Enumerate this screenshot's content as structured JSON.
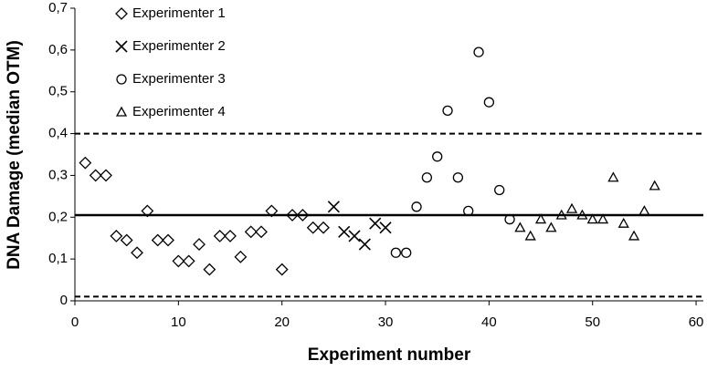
{
  "chart_data": {
    "type": "scatter",
    "xlabel": "Experiment number",
    "ylabel": "DNA Damage (median OTM)",
    "xlim": [
      0,
      60.7
    ],
    "ylim": [
      0,
      0.7
    ],
    "xticks": [
      0,
      10,
      20,
      30,
      40,
      50,
      60
    ],
    "yticks": [
      0,
      {
        "value": 0.1,
        "label": "0,1"
      },
      {
        "value": 0.2,
        "label": "0,2"
      },
      {
        "value": 0.3,
        "label": "0,3"
      },
      {
        "value": 0.4,
        "label": "0,4"
      },
      {
        "value": 0.5,
        "label": "0,5"
      },
      {
        "value": 0.6,
        "label": "0,6"
      },
      {
        "value": 0.7,
        "label": "0,7"
      }
    ],
    "reference_lines": [
      {
        "value": 0.4,
        "style": "dashed"
      },
      {
        "value": 0.205,
        "style": "solid"
      },
      {
        "value": 0.01,
        "style": "dashed"
      }
    ],
    "legend": "upper left",
    "series": [
      {
        "name": "Experimenter 1",
        "marker": "diamond",
        "color": "#000000",
        "x": [
          1,
          2,
          3,
          4,
          5,
          6,
          7,
          8,
          9,
          10,
          11,
          12,
          13,
          14,
          15,
          16,
          17,
          18,
          19,
          20,
          21,
          22,
          23,
          24
        ],
        "values": [
          0.33,
          0.3,
          0.3,
          0.155,
          0.145,
          0.115,
          0.215,
          0.145,
          0.145,
          0.095,
          0.095,
          0.135,
          0.075,
          0.155,
          0.155,
          0.105,
          0.165,
          0.165,
          0.215,
          0.075,
          0.205,
          0.205,
          0.175,
          0.175
        ]
      },
      {
        "name": "Experimenter 2",
        "marker": "x",
        "color": "#000000",
        "x": [
          25,
          26,
          27,
          28,
          29,
          30
        ],
        "values": [
          0.225,
          0.165,
          0.155,
          0.135,
          0.185,
          0.175
        ]
      },
      {
        "name": "Experimenter 3",
        "marker": "circle",
        "color": "#000000",
        "x": [
          31,
          32,
          33,
          34,
          35,
          36,
          37,
          38,
          39,
          40,
          41,
          42
        ],
        "values": [
          0.115,
          0.115,
          0.225,
          0.295,
          0.345,
          0.455,
          0.295,
          0.215,
          0.595,
          0.475,
          0.265,
          0.195
        ]
      },
      {
        "name": "Experimenter 4",
        "marker": "triangle",
        "color": "#000000",
        "x": [
          43,
          44,
          45,
          46,
          47,
          48,
          49,
          50,
          51,
          52,
          53,
          54,
          55,
          56
        ],
        "values": [
          0.175,
          0.155,
          0.195,
          0.175,
          0.205,
          0.22,
          0.205,
          0.195,
          0.195,
          0.295,
          0.185,
          0.155,
          0.215,
          0.275
        ]
      }
    ]
  }
}
